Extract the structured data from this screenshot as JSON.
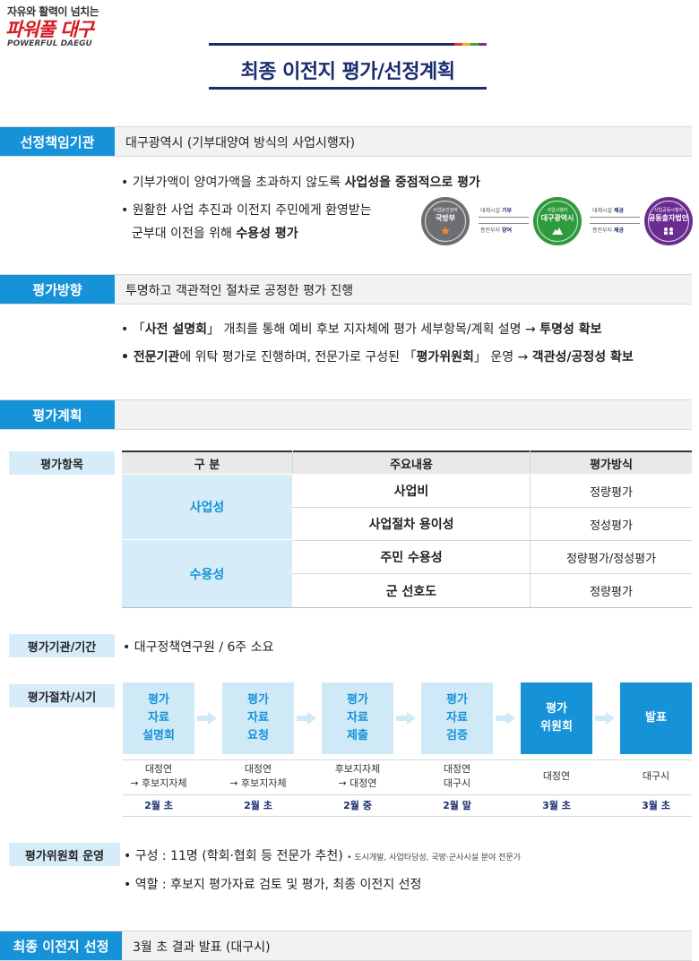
{
  "logo": {
    "tagline": "자유와 활력이 넘치는",
    "main": "파워풀 대구",
    "english": "POWERFUL DAEGU"
  },
  "title": "최종 이전지 평가/선정계획",
  "sections": {
    "responsible": {
      "label": "선정책임기관",
      "desc": "대구광역시 (기부대양여 방식의 사업시행자)",
      "bullets": [
        {
          "pre": "• 기부가액이 양여가액을 초과하지 않도록 ",
          "bold": "사업성을 중점적으로 평가",
          "post": ""
        },
        {
          "pre": "• 원활한 사업 추진과 이전지 주민에게 환영받는",
          "bold": "",
          "post": ""
        },
        {
          "pre": "군부대 이전을 위해 ",
          "bold": "수용성 평가",
          "post": ""
        }
      ],
      "diagram": {
        "mnd": {
          "small": "사업승인권자",
          "name": "국방부"
        },
        "daegu": {
          "small": "사업시행자",
          "name": "대구광역시"
        },
        "pub": {
          "small": "사업공동시행자",
          "name": "공동출자법인"
        },
        "left_top": {
          "pre": "대체시설 ",
          "bold": "기부"
        },
        "left_bottom": {
          "pre": "종전부지 ",
          "bold": "양여"
        },
        "right_top": {
          "pre": "대체시설 ",
          "bold": "제공"
        },
        "right_bottom": {
          "pre": "종전부지 ",
          "bold": "제공"
        }
      }
    },
    "direction": {
      "label": "평가방향",
      "desc": "투명하고 객관적인 절차로 공정한 평가 진행",
      "b1": {
        "pre": "• 「",
        "bold1": "사전 설명회",
        "mid": "」 개최를 통해 예비 후보 지자체에 평가 세부항목/계획 설명 → ",
        "bold2": "투명성 확보"
      },
      "b2": {
        "bold1": "• 전문기관",
        "mid1": "에 위탁 평가로 진행하며, 전문가로 구성된 「",
        "bold2": "평가위원회",
        "mid2": "」 운영 → ",
        "bold3": "객관성/공정성 확보"
      }
    },
    "plan": {
      "label": "평가계획"
    }
  },
  "items": {
    "label": "평가항목",
    "headers": [
      "구 분",
      "주요내용",
      "평가방식"
    ],
    "categories": [
      "사업성",
      "수용성"
    ],
    "rows": [
      {
        "content": "사업비",
        "method": "정량평가"
      },
      {
        "content": "사업절차 용이성",
        "method": "정성평가"
      },
      {
        "content": "주민 수용성",
        "method": "정량평가/정성평가"
      },
      {
        "content": "군 선호도",
        "method": "정량평가"
      }
    ]
  },
  "agency": {
    "label": "평가기관/기간",
    "text": "• 대구정책연구원 / 6주 소요"
  },
  "process": {
    "label": "평가절차/시기",
    "steps": [
      {
        "l1": "평가",
        "l2": "자료",
        "l3": "설명회",
        "org1": "대정연",
        "org2": "→ 후보지자체",
        "month": "2월 초"
      },
      {
        "l1": "평가",
        "l2": "자료",
        "l3": "요청",
        "org1": "대정연",
        "org2": "→ 후보지자체",
        "month": "2월 초"
      },
      {
        "l1": "평가",
        "l2": "자료",
        "l3": "제출",
        "org1": "후보지자체",
        "org2": "→ 대정연",
        "month": "2월 중"
      },
      {
        "l1": "평가",
        "l2": "자료",
        "l3": "검증",
        "org1": "대정연",
        "org2": "대구시",
        "month": "2월 말"
      },
      {
        "l1": "평가",
        "l2": "위원회",
        "org1": "대정연",
        "month": "3월 초"
      },
      {
        "l1": "발표",
        "org1": "대구시",
        "month": "3월 초"
      }
    ]
  },
  "committee": {
    "label": "평가위원회 운영",
    "b1": "• 구성 : 11명 (학회·협회 등 전문가 추천)",
    "b1_note": "• 도시개발, 사업타당성, 국방·군사시설 분야 전문가",
    "b2": "• 역할 : 후보지 평가자료 검토 및 평가, 최종 이전지 선정"
  },
  "final": {
    "label": "최종 이전지 선정",
    "desc": "3월 초 결과 발표 (대구시)"
  },
  "colors": {
    "accent": "#1592d8",
    "navy": "#1a2d6e",
    "light": "#d6ecf9",
    "brand_red": "#d7191f"
  }
}
